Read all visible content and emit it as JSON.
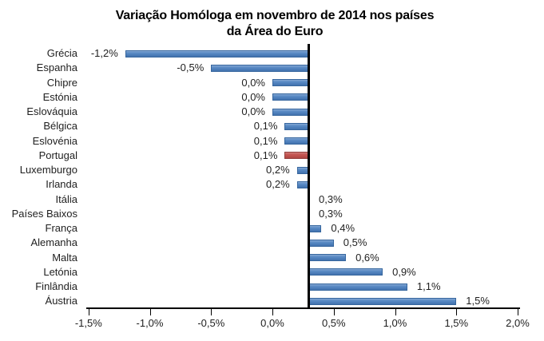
{
  "title": {
    "line1": "Variação Homóloga em novembro de 2014 nos países",
    "line2": "da Área do Euro"
  },
  "chart_data": {
    "type": "bar",
    "orientation": "horizontal",
    "title": "Variação Homóloga em novembro de 2014 nos países da Área do Euro",
    "categories": [
      "Grécia",
      "Espanha",
      "Chipre",
      "Estónia",
      "Eslováquia",
      "Bélgica",
      "Eslovénia",
      "Portugal",
      "Luxemburgo",
      "Irlanda",
      "Itália",
      "Países Baixos",
      "França",
      "Alemanha",
      "Malta",
      "Letónia",
      "Finlândia",
      "Áustria"
    ],
    "values": [
      -1.2,
      -0.5,
      0.0,
      0.0,
      0.0,
      0.1,
      0.1,
      0.1,
      0.2,
      0.2,
      0.3,
      0.3,
      0.4,
      0.5,
      0.6,
      0.9,
      1.1,
      1.5
    ],
    "value_labels": [
      "-1,2%",
      "-0,5%",
      "0,0%",
      "0,0%",
      "0,0%",
      "0,1%",
      "0,1%",
      "0,1%",
      "0,2%",
      "0,2%",
      "0,3%",
      "0,3%",
      "0,4%",
      "0,5%",
      "0,6%",
      "0,9%",
      "1,1%",
      "1,5%"
    ],
    "highlight_category": "Portugal",
    "highlight_index": 7,
    "baseline_value": 0.3,
    "xlim": [
      -1.5,
      2.0
    ],
    "x_ticks": [
      {
        "value": -1.5,
        "label": "-1,5%"
      },
      {
        "value": -1.0,
        "label": "-1,0%"
      },
      {
        "value": -0.5,
        "label": "-0,5%"
      },
      {
        "value": 0.0,
        "label": "0,0%"
      },
      {
        "value": 0.5,
        "label": "0,5%"
      },
      {
        "value": 1.0,
        "label": "1,0%"
      },
      {
        "value": 1.5,
        "label": "1,5%"
      },
      {
        "value": 2.0,
        "label": "2,0%"
      }
    ],
    "grid": false,
    "legend": false,
    "colors": {
      "bar": "#4f81bd",
      "bar_border": "#36669e",
      "highlight": "#c0504d",
      "highlight_border": "#94403d",
      "axis": "#000000",
      "text": "#1f1f1f",
      "background": "#ffffff"
    }
  }
}
